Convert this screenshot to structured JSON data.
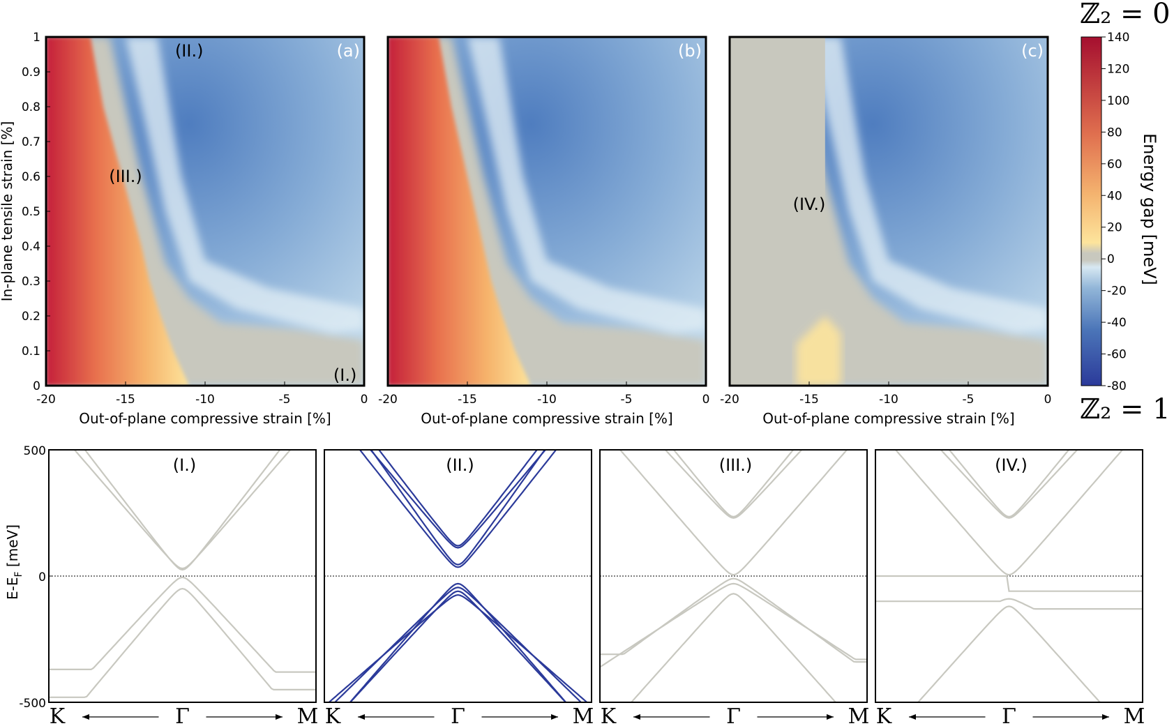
{
  "chart_data": {
    "type": "heatmap+line",
    "colorbar": {
      "label": "Energy gap [meV]",
      "ticks": [
        "140",
        "120",
        "100",
        "80",
        "60",
        "40",
        "20",
        "0",
        "-20",
        "-40",
        "-60",
        "-80"
      ],
      "range": [
        -80,
        140
      ],
      "top_label": "ℤ₂ = 0",
      "bottom_label": "ℤ₂ = 1",
      "colors": {
        "high": "#b2182b",
        "mid_pos": "#ef8a62",
        "zero_pos": "#fde49c",
        "zero": "#c8c8be",
        "neg": "#d1e5f0",
        "low": "#2b3a9a"
      }
    },
    "heatmaps": [
      {
        "tag": "(a)",
        "xlabel": "Out-of-plane compressive strain [%]",
        "ylabel": "In-plane tensile strain [%]",
        "xticks": [
          "-20",
          "-15",
          "-10",
          "-5",
          "0"
        ],
        "yticks": [
          "0",
          "0.1",
          "0.2",
          "0.3",
          "0.4",
          "0.5",
          "0.6",
          "0.7",
          "0.8",
          "0.9",
          "1"
        ],
        "xlim": [
          -20,
          0
        ],
        "ylim": [
          0,
          1
        ],
        "boundary_x_at_y": [
          [
            0,
            -11
          ],
          [
            0.1,
            -12
          ],
          [
            0.2,
            -12.8
          ],
          [
            0.3,
            -13.5
          ],
          [
            0.4,
            -14
          ],
          [
            0.5,
            -14.6
          ],
          [
            0.6,
            -15.2
          ],
          [
            0.7,
            -15.8
          ],
          [
            0.8,
            -16.4
          ],
          [
            0.9,
            -16.8
          ],
          [
            1,
            -17.2
          ]
        ],
        "regions": [
          {
            "label": "(II.)",
            "x": -11,
            "y": 0.96
          },
          {
            "label": "(III.)",
            "x": -15,
            "y": 0.6
          },
          {
            "label": "(I.)",
            "x": -1.2,
            "y": 0.03
          }
        ]
      },
      {
        "tag": "(b)",
        "xlabel": "Out-of-plane compressive strain [%]",
        "xticks": [
          "-20",
          "-15",
          "-10",
          "-5",
          "0"
        ],
        "xlim": [
          -20,
          0
        ],
        "ylim": [
          0,
          1
        ],
        "boundary_x_at_y": [
          [
            0,
            -11
          ],
          [
            0.1,
            -12
          ],
          [
            0.2,
            -12.8
          ],
          [
            0.3,
            -13.5
          ],
          [
            0.4,
            -14
          ],
          [
            0.5,
            -14.5
          ],
          [
            0.6,
            -15
          ],
          [
            0.7,
            -15.5
          ],
          [
            0.8,
            -16
          ],
          [
            0.9,
            -16.4
          ],
          [
            1,
            -16.8
          ]
        ],
        "regions": []
      },
      {
        "tag": "(c)",
        "xlabel": "Out-of-plane compressive strain [%]",
        "xticks": [
          "-20",
          "-15",
          "-10",
          "-5",
          "0"
        ],
        "xlim": [
          -20,
          0
        ],
        "ylim": [
          0,
          1
        ],
        "boundary_x_at_y": [
          [
            0.4,
            -13.5
          ],
          [
            0.6,
            -13.6
          ],
          [
            0.8,
            -13.8
          ],
          [
            1,
            -14
          ]
        ],
        "regions": [
          {
            "label": "(IV.)",
            "x": -15,
            "y": 0.52
          }
        ]
      }
    ],
    "band_panels": [
      {
        "label": "(I.)",
        "color": "#c8c8c0",
        "ylabel": "E-E_F [meV]",
        "yticks": [
          "500",
          "0",
          "-500"
        ],
        "ylim": [
          -500,
          500
        ],
        "kpoints": [
          "K",
          "Γ",
          "M"
        ],
        "bands": [
          {
            "vertex": 30,
            "slope": 3.2,
            "flat_left": null,
            "flat_right": null,
            "sign": 1
          },
          {
            "vertex": 25,
            "slope": 3.6,
            "flat_left": null,
            "flat_right": null,
            "sign": 1
          },
          {
            "vertex": -5,
            "slope": 3.0,
            "flat_left": -370,
            "flat_right": -380,
            "sign": -1
          },
          {
            "vertex": -50,
            "slope": 3.3,
            "flat_left": -480,
            "flat_right": -450,
            "sign": -1
          }
        ]
      },
      {
        "label": "(II.)",
        "color": "#2b3a9a",
        "kpoints": [
          "K",
          "Γ",
          "M"
        ],
        "ylim": [
          -500,
          500
        ],
        "bands": [
          {
            "vertex": 120,
            "slope": 3.6,
            "flat_left": null,
            "flat_right": null,
            "sign": 1
          },
          {
            "vertex": 112,
            "slope": 3.3,
            "flat_left": null,
            "flat_right": null,
            "sign": 1
          },
          {
            "vertex": 45,
            "slope": 3.9,
            "flat_left": null,
            "flat_right": null,
            "sign": 1
          },
          {
            "vertex": 35,
            "slope": 3.5,
            "flat_left": null,
            "flat_right": null,
            "sign": 1
          },
          {
            "vertex": -30,
            "slope": 3.2,
            "flat_left": null,
            "flat_right": null,
            "sign": -1
          },
          {
            "vertex": -45,
            "slope": 2.7,
            "flat_left": null,
            "flat_right": null,
            "sign": -1
          },
          {
            "vertex": -60,
            "slope": 3.0,
            "flat_left": null,
            "flat_right": null,
            "sign": -1
          },
          {
            "vertex": -75,
            "slope": 2.4,
            "flat_left": null,
            "flat_right": null,
            "sign": -1
          }
        ]
      },
      {
        "label": "(III.)",
        "color": "#c8c8c0",
        "kpoints": [
          "K",
          "Γ",
          "M"
        ],
        "ylim": [
          -500,
          500
        ],
        "bands": [
          {
            "vertex": 235,
            "slope": 3.4,
            "flat_left": null,
            "flat_right": null,
            "sign": 1
          },
          {
            "vertex": 230,
            "slope": 3.0,
            "flat_left": null,
            "flat_right": null,
            "sign": 1
          },
          {
            "vertex": 5,
            "slope": 3.2,
            "flat_left": null,
            "flat_right": null,
            "sign": 1
          },
          {
            "vertex": -10,
            "slope": 2.0,
            "flat_left": -310,
            "flat_right": -340,
            "sign": -1
          },
          {
            "vertex": -30,
            "slope": 1.8,
            "flat_left": -400,
            "flat_right": -330,
            "sign": -1
          },
          {
            "vertex": -70,
            "slope": 3.1,
            "flat_left": null,
            "flat_right": null,
            "sign": -1
          }
        ]
      },
      {
        "label": "(IV.)",
        "color": "#c8c8c0",
        "kpoints": [
          "K",
          "Γ",
          "M"
        ],
        "ylim": [
          -500,
          500
        ],
        "bands": [
          {
            "vertex": 235,
            "slope": 3.4,
            "flat_left": null,
            "flat_right": null,
            "sign": 1
          },
          {
            "vertex": 230,
            "slope": 3.0,
            "flat_left": null,
            "flat_right": null,
            "sign": 1
          },
          {
            "vertex": 5,
            "slope": 3.2,
            "flat_left": null,
            "flat_right": null,
            "sign": 1
          },
          {
            "vertex": -60,
            "slope": 1.2,
            "flat_left": 0,
            "flat_right": -60,
            "sign": -1
          },
          {
            "vertex": -90,
            "slope": 1.4,
            "flat_left": -100,
            "flat_right": -130,
            "sign": -1
          },
          {
            "vertex": -120,
            "slope": 3.1,
            "flat_left": null,
            "flat_right": null,
            "sign": -1
          }
        ]
      }
    ]
  }
}
